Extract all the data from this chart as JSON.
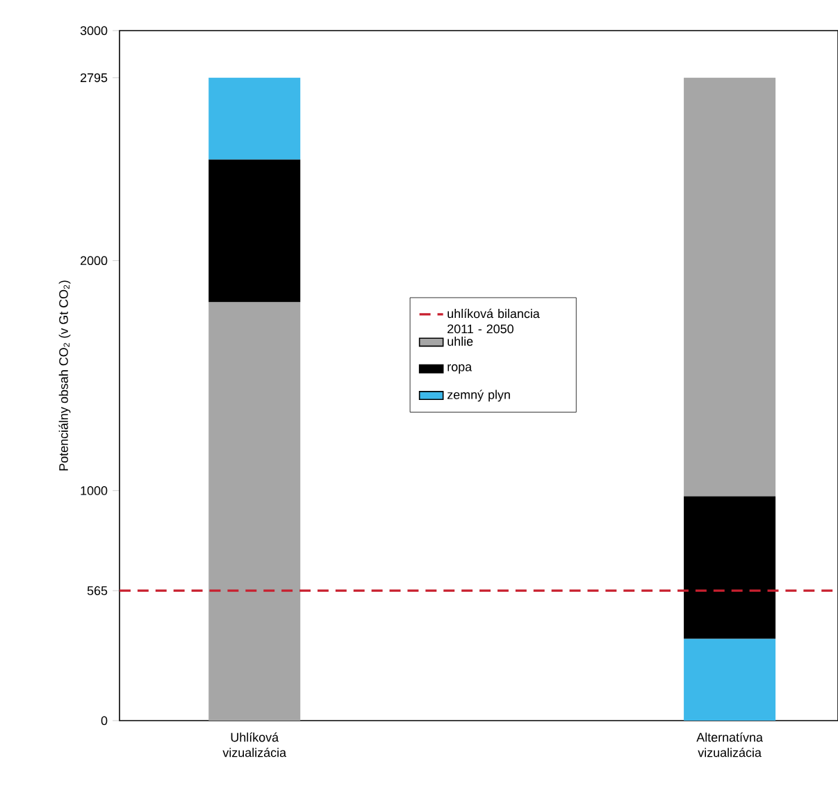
{
  "chart_data": {
    "type": "bar",
    "ylabel": "Potenciálny obsah CO$_{2}$ (v Gt CO$_{2}$)",
    "categories": [
      "Uhlíková vizualizácia",
      "Alternatívna vizualizácia"
    ],
    "series": [
      {
        "name": "uhlie",
        "color": "#a6a6a6",
        "values": [
          1820,
          1820
        ],
        "base": [
          0,
          975
        ]
      },
      {
        "name": "ropa",
        "color": "#000000",
        "values": [
          620,
          620
        ],
        "base": [
          1820,
          355
        ]
      },
      {
        "name": "zemný plyn",
        "color": "#3db8ea",
        "values": [
          355,
          355
        ],
        "base": [
          2440,
          0
        ]
      }
    ],
    "ylim": [
      0,
      3000
    ],
    "yticks": [
      0,
      565,
      1000,
      2000,
      2795,
      3000
    ],
    "ref_lines": [
      {
        "axis": "y",
        "value": 565,
        "label": "uhlíková bilancia 2011 - 2050",
        "color": "#c8202f",
        "line_style": "dashed"
      }
    ],
    "legend": "center"
  }
}
